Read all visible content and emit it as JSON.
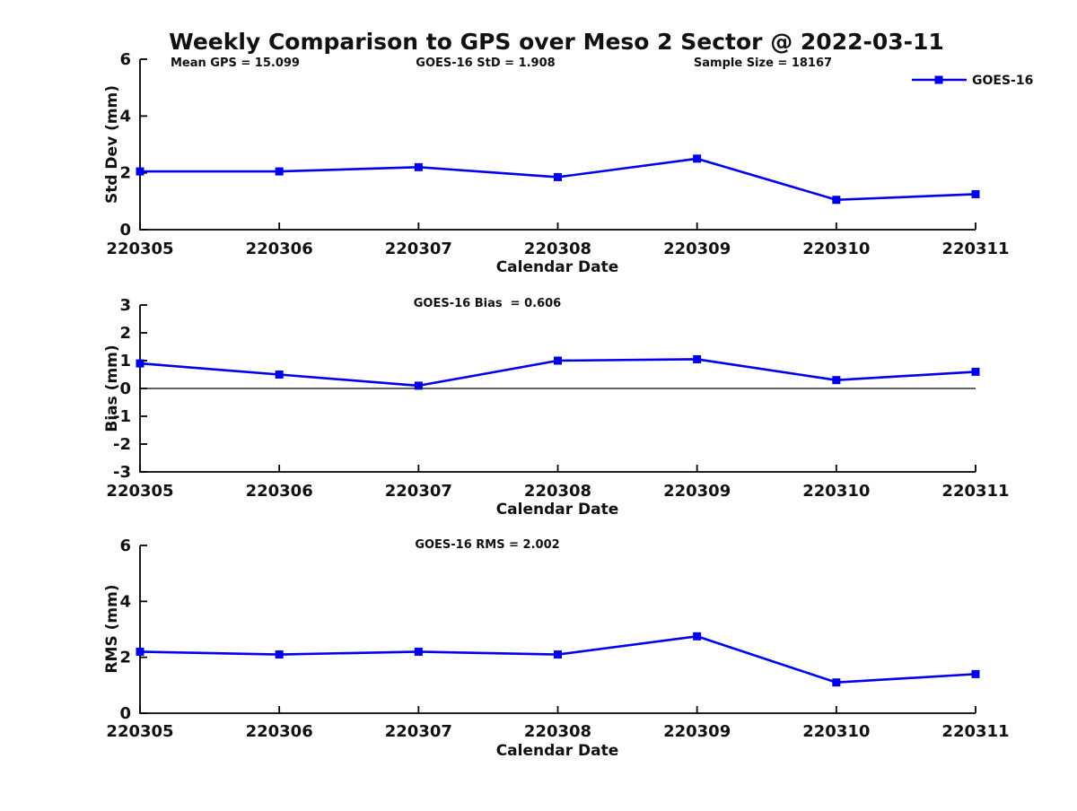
{
  "title": "Weekly Comparison to GPS over Meso 2 Sector @ 2022-03-11",
  "colors": {
    "line": "#0000ee",
    "marker": "#0000dd",
    "axis": "#000000",
    "zero_line": "#000000",
    "text": "#111111"
  },
  "legend": {
    "label": "GOES-16"
  },
  "chart_data": [
    {
      "type": "line",
      "id": "std-dev",
      "ylabel": "Std Dev (mm)",
      "xlabel": "Calendar Date",
      "categories": [
        "220305",
        "220306",
        "220307",
        "220308",
        "220309",
        "220310",
        "220311"
      ],
      "series": [
        {
          "name": "GOES-16",
          "values": [
            2.05,
            2.05,
            2.2,
            1.85,
            2.5,
            1.05,
            1.25
          ]
        }
      ],
      "ylim": [
        0,
        6
      ],
      "yticks": [
        0,
        2,
        4,
        6
      ],
      "annotations": [
        "Mean GPS = 15.099",
        "GOES-16 StD = 1.908",
        "Sample Size = 18167"
      ],
      "legend_position": "top-right",
      "grid": false,
      "marker": "square"
    },
    {
      "type": "line",
      "id": "bias",
      "ylabel": "Bias (mm)",
      "xlabel": "Calendar Date",
      "categories": [
        "220305",
        "220306",
        "220307",
        "220308",
        "220309",
        "220310",
        "220311"
      ],
      "series": [
        {
          "name": "GOES-16",
          "values": [
            0.9,
            0.5,
            0.1,
            1.0,
            1.05,
            0.3,
            0.6
          ]
        }
      ],
      "ylim": [
        -3,
        3
      ],
      "yticks": [
        -3,
        -2,
        -1,
        0,
        1,
        2,
        3
      ],
      "annotations": [
        "GOES-16 Bias  = 0.606"
      ],
      "zero_line": true,
      "grid": false,
      "marker": "square"
    },
    {
      "type": "line",
      "id": "rms",
      "ylabel": "RMS (mm)",
      "xlabel": "Calendar Date",
      "categories": [
        "220305",
        "220306",
        "220307",
        "220308",
        "220309",
        "220310",
        "220311"
      ],
      "series": [
        {
          "name": "GOES-16",
          "values": [
            2.2,
            2.1,
            2.2,
            2.1,
            2.75,
            1.1,
            1.4
          ]
        }
      ],
      "ylim": [
        0,
        6
      ],
      "yticks": [
        0,
        2,
        4,
        6
      ],
      "annotations": [
        "GOES-16 RMS = 2.002"
      ],
      "grid": false,
      "marker": "square"
    }
  ]
}
